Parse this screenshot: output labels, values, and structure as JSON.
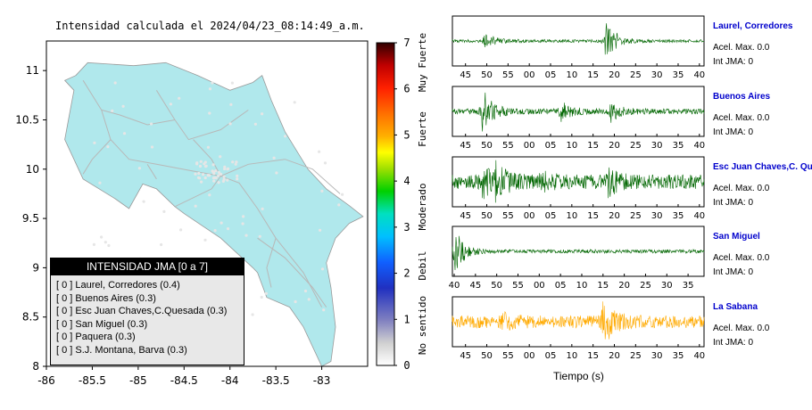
{
  "header": {
    "title": "Intensidad calculada el 2024/04/23_08:14:49_a.m."
  },
  "map": {
    "xticks": [
      "-86",
      "-85.5",
      "-85",
      "-84.5",
      "-84",
      "-83.5",
      "-83"
    ],
    "yticks": [
      "11",
      "10.5",
      "10",
      "9.5",
      "9",
      "8.5",
      "8"
    ],
    "xlim": [
      -86,
      -82.5
    ],
    "ylim": [
      8,
      11.3
    ],
    "land_color": "#b0e8ec",
    "road_color": "#b8b8b8"
  },
  "legend": {
    "title": "INTENSIDAD JMA [0 a 7]",
    "items": [
      "[ 0 ]  Laurel, Corredores (0.4)",
      "[ 0 ]  Buenos Aires (0.3)",
      "[ 0 ]  Esc Juan Chaves,C.Quesada (0.3)",
      "[ 0 ]  San Miguel (0.3)",
      "[ 0 ]  Paquera (0.3)",
      "[ 0 ]  S.J. Montana, Barva (0.3)"
    ]
  },
  "colorbar": {
    "ticks": [
      "0",
      "1",
      "2",
      "3",
      "4",
      "5",
      "6",
      "7"
    ],
    "labels": [
      "No sentido",
      "Debil",
      "Moderado",
      "Fuerte",
      "Muy Fuerte"
    ]
  },
  "waveforms": {
    "xlabel": "Tiempo (s)",
    "panels": [
      {
        "name": "Laurel, Corredores",
        "acel": "Acel. Max. 0.0",
        "int": "Int JMA: 0",
        "color": "#006600",
        "ticks": [
          "45",
          "50",
          "55",
          "00",
          "05",
          "10",
          "15",
          "20",
          "25",
          "30",
          "35",
          "40"
        ],
        "start": 0
      },
      {
        "name": "Buenos Aires",
        "acel": "Acel. Max. 0.0",
        "int": "Int JMA: 0",
        "color": "#006600",
        "ticks": [
          "45",
          "50",
          "55",
          "00",
          "05",
          "10",
          "15",
          "20",
          "25",
          "30",
          "35",
          "40"
        ],
        "start": 0
      },
      {
        "name": "Esc Juan Chaves,C. Qu",
        "acel": "Acel. Max. 0.0",
        "int": "Int JMA: 0",
        "color": "#006600",
        "ticks": [
          "45",
          "50",
          "55",
          "00",
          "05",
          "10",
          "15",
          "20",
          "25",
          "30",
          "35",
          "40"
        ],
        "start": 0
      },
      {
        "name": "San Miguel",
        "acel": "Acel. Max. 0.0",
        "int": "Int JMA: 0",
        "color": "#006600",
        "ticks": [
          "40",
          "45",
          "50",
          "55",
          "00",
          "05",
          "10",
          "15",
          "20",
          "25",
          "30",
          "35"
        ],
        "start": 1
      },
      {
        "name": "La Sabana",
        "acel": "Acel. Max. 0.0",
        "int": "Int JMA: 0",
        "color": "#ffaa00",
        "ticks": [
          "45",
          "50",
          "55",
          "00",
          "05",
          "10",
          "15",
          "20",
          "25",
          "30",
          "35",
          "40"
        ],
        "start": 0
      }
    ]
  },
  "chart_data": {
    "type": "heatmap",
    "title": "Intensidad calculada el 2024/04/23_08:14:49_a.m.",
    "xlim": [
      -86,
      -82.5
    ],
    "ylim": [
      8,
      11.3
    ],
    "colorbar_range": [
      0,
      7
    ],
    "stations": [
      {
        "name": "Laurel, Corredores",
        "intensity": 0.4
      },
      {
        "name": "Buenos Aires",
        "intensity": 0.3
      },
      {
        "name": "Esc Juan Chaves,C.Quesada",
        "intensity": 0.3
      },
      {
        "name": "San Miguel",
        "intensity": 0.3
      },
      {
        "name": "Paquera",
        "intensity": 0.3
      },
      {
        "name": "S.J. Montana, Barva",
        "intensity": 0.3
      }
    ]
  }
}
